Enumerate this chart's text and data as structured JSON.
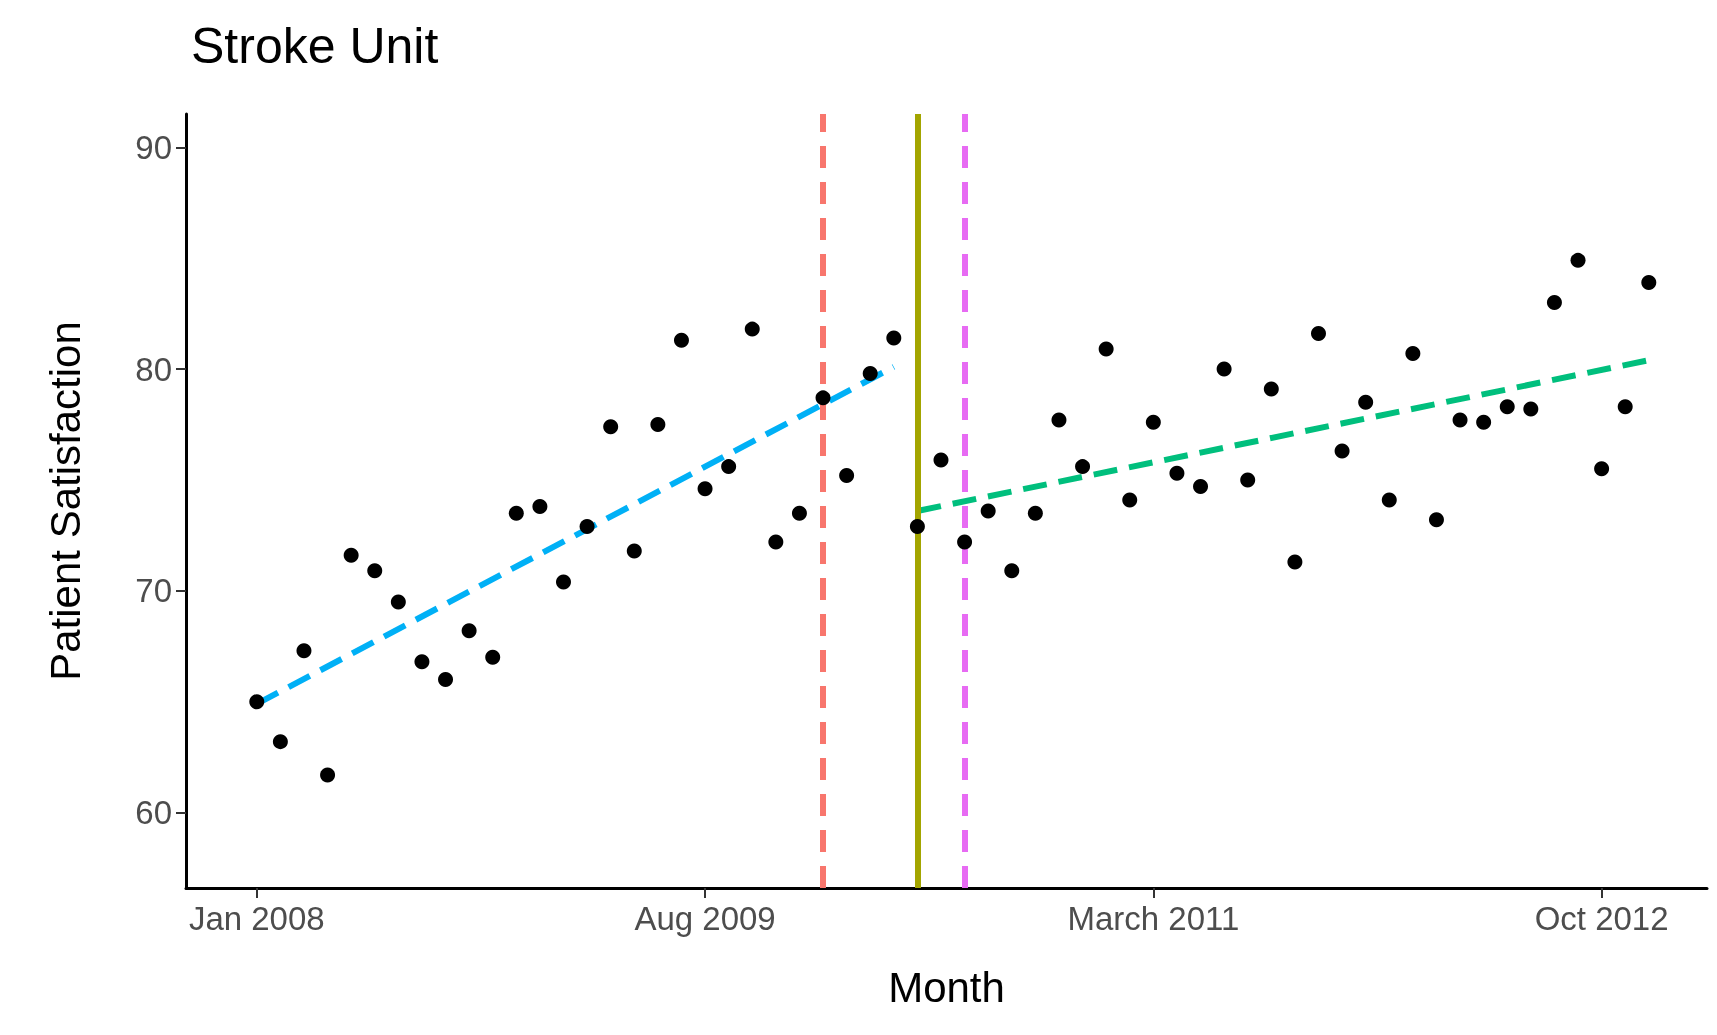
{
  "chart_data": {
    "type": "scatter",
    "title": "Stroke Unit",
    "xlabel": "Month",
    "ylabel": "Patient Satisfaction",
    "xlim": [
      "2007-10",
      "2013-02-15"
    ],
    "xticks": [
      {
        "value": "2008-01",
        "label": "Jan 2008"
      },
      {
        "value": "2009-08",
        "label": "Aug 2009"
      },
      {
        "value": "2011-03",
        "label": "March 2011"
      },
      {
        "value": "2012-10",
        "label": "Oct 2012"
      }
    ],
    "ylim": [
      56.6,
      91.5
    ],
    "yticks": [
      60,
      70,
      80,
      90
    ],
    "grid": false,
    "series": [
      {
        "color": "#000000",
        "marker": "circle",
        "x": [
          "2008-01",
          "2008-02",
          "2008-03",
          "2008-04",
          "2008-05",
          "2008-06",
          "2008-07",
          "2008-08",
          "2008-09",
          "2008-10",
          "2008-11",
          "2008-12",
          "2009-01",
          "2009-02",
          "2009-03",
          "2009-04",
          "2009-05",
          "2009-06",
          "2009-07",
          "2009-08",
          "2009-09",
          "2009-10",
          "2009-11",
          "2009-12",
          "2010-01",
          "2010-02",
          "2010-03",
          "2010-04",
          "2010-05",
          "2010-06",
          "2010-07",
          "2010-08",
          "2010-09",
          "2010-10",
          "2010-11",
          "2010-12",
          "2011-01",
          "2011-02",
          "2011-03",
          "2011-04",
          "2011-05",
          "2011-06",
          "2011-07",
          "2011-08",
          "2011-09",
          "2011-10",
          "2011-11",
          "2011-12",
          "2012-01",
          "2012-02",
          "2012-03",
          "2012-04",
          "2012-05",
          "2012-06",
          "2012-07",
          "2012-08",
          "2012-09",
          "2012-10",
          "2012-11",
          "2012-12"
        ],
        "values": [
          65.0,
          63.2,
          67.3,
          61.7,
          71.6,
          70.9,
          69.5,
          66.8,
          66.0,
          68.2,
          67.0,
          73.5,
          73.8,
          70.4,
          72.9,
          77.4,
          71.8,
          77.5,
          81.3,
          74.6,
          75.6,
          81.8,
          72.2,
          73.5,
          78.7,
          75.2,
          79.8,
          81.4,
          72.9,
          75.9,
          72.2,
          73.6,
          70.9,
          73.5,
          77.7,
          75.6,
          80.9,
          74.1,
          77.6,
          75.3,
          74.7,
          80.0,
          75.0,
          79.1,
          71.3,
          81.6,
          76.3,
          78.5,
          74.1,
          80.7,
          73.2,
          77.7,
          77.6,
          78.3,
          78.2,
          83.0,
          84.9,
          75.5,
          78.3,
          83.9
        ]
      },
      {
        "type": "line",
        "color": "#00b0f6",
        "line_style": "dashed",
        "marker": "none",
        "x": [
          "2008-01",
          "2010-04"
        ],
        "values": [
          64.9,
          80.1
        ]
      },
      {
        "type": "line",
        "color": "#00bf7d",
        "line_style": "dashed",
        "marker": "none",
        "x": [
          "2010-05",
          "2012-12"
        ],
        "values": [
          73.6,
          80.4
        ]
      }
    ],
    "ref_lines": [
      {
        "axis": "x",
        "value": "2010-01",
        "color": "#f8766d",
        "line_style": "dashed"
      },
      {
        "axis": "x",
        "value": "2010-05",
        "color": "#a3a500",
        "line_style": "solid"
      },
      {
        "axis": "x",
        "value": "2010-07",
        "color": "#e76bf3",
        "line_style": "dashed"
      }
    ]
  }
}
